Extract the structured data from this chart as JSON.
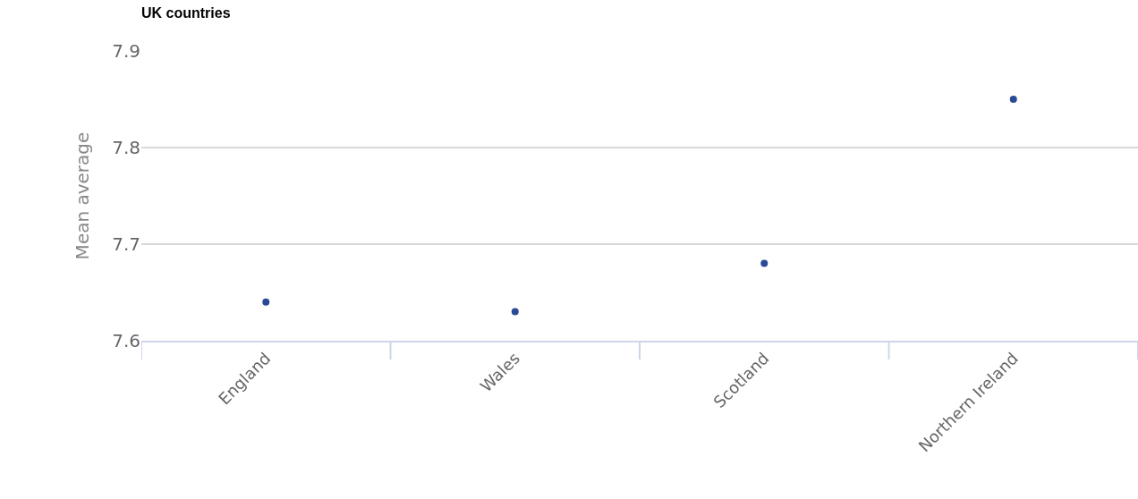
{
  "chart_data": {
    "type": "scatter",
    "title": "UK countries",
    "ylabel": "Mean average",
    "categories": [
      "England",
      "Wales",
      "Scotland",
      "Northern Ireland"
    ],
    "series": [
      {
        "color": "#2b4a96",
        "values": [
          7.64,
          7.63,
          7.68,
          7.85
        ]
      }
    ],
    "ylim": [
      7.6,
      7.9
    ],
    "yticks": [
      7.6,
      7.7,
      7.8,
      7.9
    ],
    "grid": "y",
    "marker": "circle",
    "legend": false
  }
}
